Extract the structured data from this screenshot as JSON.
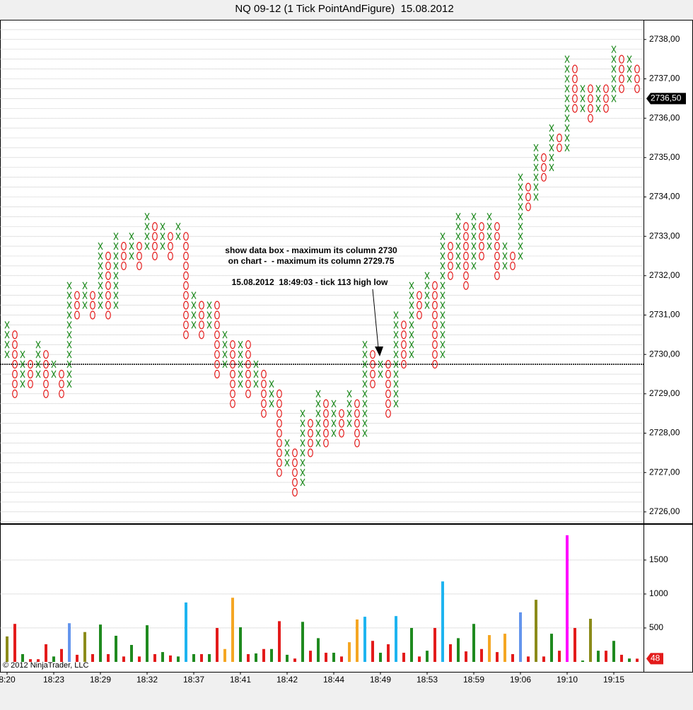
{
  "chart_data": [
    {
      "type": "pointandfigure",
      "title": "NQ 09-12 (1 Tick PointAndFigure)  15.08.2012",
      "box_size": 0.25,
      "x_color": "#1f8a1f",
      "o_color": "#e31b1b",
      "ylim": [
        2725.71,
        2738.5
      ],
      "yticks": [
        {
          "value": 2726,
          "label": "2726,00"
        },
        {
          "value": 2727,
          "label": "2727,00"
        },
        {
          "value": 2728,
          "label": "2728,00"
        },
        {
          "value": 2729,
          "label": "2729,00"
        },
        {
          "value": 2730,
          "label": "2730,00"
        },
        {
          "value": 2731,
          "label": "2731,00"
        },
        {
          "value": 2732,
          "label": "2732,00"
        },
        {
          "value": 2733,
          "label": "2733,00"
        },
        {
          "value": 2734,
          "label": "2734,00"
        },
        {
          "value": 2735,
          "label": "2735,00"
        },
        {
          "value": 2736,
          "label": "2736,00"
        },
        {
          "value": 2737,
          "label": "2737,00"
        },
        {
          "value": 2738,
          "label": "2738,00"
        }
      ],
      "reference_line": 2729.75,
      "last_price": {
        "value": 2736.5,
        "label": "2736,50"
      },
      "annotations": [
        "show data box - maximum its column 2730",
        "on chart -  - maximum its column 2729.75",
        "15.08.2012  18:49:03 - tick 113 high low"
      ],
      "copyright": "© 2012 NinjaTrader, LLC",
      "columns": [
        {
          "kind": "X",
          "low": 2730.0,
          "high": 2730.75
        },
        {
          "kind": "O",
          "low": 2729.0,
          "high": 2730.5
        },
        {
          "kind": "X",
          "low": 2729.25,
          "high": 2730.0
        },
        {
          "kind": "O",
          "low": 2729.25,
          "high": 2729.75
        },
        {
          "kind": "X",
          "low": 2729.5,
          "high": 2730.25
        },
        {
          "kind": "O",
          "low": 2729.0,
          "high": 2730.0
        },
        {
          "kind": "X",
          "low": 2729.5,
          "high": 2729.75
        },
        {
          "kind": "O",
          "low": 2729.0,
          "high": 2729.5
        },
        {
          "kind": "X",
          "low": 2729.25,
          "high": 2731.75
        },
        {
          "kind": "O",
          "low": 2731.0,
          "high": 2731.5
        },
        {
          "kind": "X",
          "low": 2731.25,
          "high": 2731.75
        },
        {
          "kind": "O",
          "low": 2731.0,
          "high": 2731.5
        },
        {
          "kind": "X",
          "low": 2731.25,
          "high": 2732.75
        },
        {
          "kind": "O",
          "low": 2731.0,
          "high": 2732.5
        },
        {
          "kind": "X",
          "low": 2731.25,
          "high": 2733.0
        },
        {
          "kind": "O",
          "low": 2732.25,
          "high": 2732.75
        },
        {
          "kind": "X",
          "low": 2732.5,
          "high": 2733.0
        },
        {
          "kind": "O",
          "low": 2732.25,
          "high": 2732.75
        },
        {
          "kind": "X",
          "low": 2732.75,
          "high": 2733.5
        },
        {
          "kind": "O",
          "low": 2732.5,
          "high": 2733.25
        },
        {
          "kind": "X",
          "low": 2732.75,
          "high": 2733.25
        },
        {
          "kind": "O",
          "low": 2732.5,
          "high": 2733.0
        },
        {
          "kind": "X",
          "low": 2733.0,
          "high": 2733.25
        },
        {
          "kind": "O",
          "low": 2730.5,
          "high": 2733.0
        },
        {
          "kind": "X",
          "low": 2730.75,
          "high": 2731.5
        },
        {
          "kind": "O",
          "low": 2730.5,
          "high": 2731.25
        },
        {
          "kind": "X",
          "low": 2730.75,
          "high": 2731.25
        },
        {
          "kind": "O",
          "low": 2729.5,
          "high": 2731.25
        },
        {
          "kind": "X",
          "low": 2729.75,
          "high": 2730.5
        },
        {
          "kind": "O",
          "low": 2728.75,
          "high": 2730.25
        },
        {
          "kind": "X",
          "low": 2729.25,
          "high": 2730.25
        },
        {
          "kind": "O",
          "low": 2729.0,
          "high": 2730.25
        },
        {
          "kind": "X",
          "low": 2729.25,
          "high": 2729.75
        },
        {
          "kind": "O",
          "low": 2728.5,
          "high": 2729.5
        },
        {
          "kind": "X",
          "low": 2728.75,
          "high": 2729.25
        },
        {
          "kind": "O",
          "low": 2727.0,
          "high": 2729.0
        },
        {
          "kind": "X",
          "low": 2727.25,
          "high": 2727.75
        },
        {
          "kind": "O",
          "low": 2726.5,
          "high": 2727.5
        },
        {
          "kind": "X",
          "low": 2726.75,
          "high": 2728.5
        },
        {
          "kind": "O",
          "low": 2727.5,
          "high": 2728.25
        },
        {
          "kind": "X",
          "low": 2727.75,
          "high": 2729.0
        },
        {
          "kind": "O",
          "low": 2727.75,
          "high": 2728.75
        },
        {
          "kind": "X",
          "low": 2728.0,
          "high": 2728.75
        },
        {
          "kind": "O",
          "low": 2728.0,
          "high": 2728.5
        },
        {
          "kind": "X",
          "low": 2728.25,
          "high": 2729.0
        },
        {
          "kind": "O",
          "low": 2727.75,
          "high": 2728.75
        },
        {
          "kind": "X",
          "low": 2728.0,
          "high": 2730.25
        },
        {
          "kind": "O",
          "low": 2729.25,
          "high": 2730.0
        },
        {
          "kind": "X",
          "low": 2729.5,
          "high": 2729.75
        },
        {
          "kind": "O",
          "low": 2728.5,
          "high": 2729.75
        },
        {
          "kind": "X",
          "low": 2728.75,
          "high": 2731.0
        },
        {
          "kind": "O",
          "low": 2729.75,
          "high": 2730.75
        },
        {
          "kind": "X",
          "low": 2730.0,
          "high": 2731.75
        },
        {
          "kind": "O",
          "low": 2731.0,
          "high": 2731.5
        },
        {
          "kind": "X",
          "low": 2731.25,
          "high": 2732.0
        },
        {
          "kind": "O",
          "low": 2729.75,
          "high": 2731.75
        },
        {
          "kind": "X",
          "low": 2730.0,
          "high": 2733.0
        },
        {
          "kind": "O",
          "low": 2732.0,
          "high": 2732.75
        },
        {
          "kind": "X",
          "low": 2732.25,
          "high": 2733.5
        },
        {
          "kind": "O",
          "low": 2731.75,
          "high": 2733.25
        },
        {
          "kind": "X",
          "low": 2732.25,
          "high": 2733.5
        },
        {
          "kind": "O",
          "low": 2732.5,
          "high": 2733.25
        },
        {
          "kind": "X",
          "low": 2732.75,
          "high": 2733.5
        },
        {
          "kind": "O",
          "low": 2732.0,
          "high": 2733.25
        },
        {
          "kind": "X",
          "low": 2732.25,
          "high": 2732.75
        },
        {
          "kind": "O",
          "low": 2732.25,
          "high": 2732.5
        },
        {
          "kind": "X",
          "low": 2732.5,
          "high": 2734.5
        },
        {
          "kind": "O",
          "low": 2733.75,
          "high": 2734.25
        },
        {
          "kind": "X",
          "low": 2734.0,
          "high": 2735.25
        },
        {
          "kind": "O",
          "low": 2734.5,
          "high": 2735.0
        },
        {
          "kind": "X",
          "low": 2734.75,
          "high": 2735.75
        },
        {
          "kind": "O",
          "low": 2735.25,
          "high": 2735.5
        },
        {
          "kind": "X",
          "low": 2735.25,
          "high": 2737.5
        },
        {
          "kind": "O",
          "low": 2736.25,
          "high": 2737.25
        },
        {
          "kind": "X",
          "low": 2736.25,
          "high": 2736.75
        },
        {
          "kind": "O",
          "low": 2736.0,
          "high": 2736.75
        },
        {
          "kind": "X",
          "low": 2736.25,
          "high": 2736.75
        },
        {
          "kind": "O",
          "low": 2736.25,
          "high": 2736.75
        },
        {
          "kind": "X",
          "low": 2736.5,
          "high": 2737.75
        },
        {
          "kind": "O",
          "low": 2736.75,
          "high": 2737.5
        },
        {
          "kind": "X",
          "low": 2737.0,
          "high": 2737.5
        },
        {
          "kind": "O",
          "low": 2736.75,
          "high": 2737.25
        }
      ]
    },
    {
      "type": "bar",
      "categories": [
        "8:20",
        null,
        null,
        null,
        null,
        null,
        "18:23",
        null,
        null,
        null,
        null,
        null,
        "18:29",
        null,
        null,
        null,
        null,
        null,
        "18:32",
        null,
        null,
        null,
        null,
        null,
        "18:37",
        null,
        null,
        null,
        null,
        null,
        "18:41",
        null,
        null,
        null,
        null,
        null,
        "18:42",
        null,
        null,
        null,
        null,
        null,
        "18:44",
        null,
        null,
        null,
        null,
        null,
        "18:49",
        null,
        null,
        null,
        null,
        null,
        "18:53",
        null,
        null,
        null,
        null,
        null,
        "18:59",
        null,
        null,
        null,
        null,
        null,
        "19:06",
        null,
        null,
        null,
        null,
        null,
        "19:10",
        null,
        null,
        null,
        null,
        null,
        "19:15",
        null,
        null,
        null
      ],
      "values": [
        375,
        560,
        115,
        40,
        40,
        260,
        80,
        190,
        570,
        105,
        440,
        115,
        550,
        115,
        385,
        80,
        250,
        80,
        540,
        115,
        145,
        95,
        80,
        875,
        115,
        115,
        115,
        500,
        190,
        945,
        510,
        115,
        125,
        190,
        190,
        600,
        105,
        50,
        590,
        165,
        350,
        135,
        135,
        80,
        290,
        625,
        665,
        310,
        135,
        260,
        675,
        135,
        500,
        80,
        165,
        500,
        1185,
        260,
        350,
        155,
        560,
        190,
        395,
        145,
        415,
        115,
        730,
        80,
        915,
        80,
        415,
        165,
        1865,
        500,
        20,
        635,
        165,
        165,
        310,
        105,
        50,
        48
      ],
      "colors": [
        "#8b8b1a",
        "#e31b1b",
        "#1f8a1f",
        "#e31b1b",
        "#e31b1b",
        "#e31b1b",
        "#1f8a1f",
        "#e31b1b",
        "#6495ed",
        "#e31b1b",
        "#8b8b1a",
        "#e31b1b",
        "#1f8a1f",
        "#e31b1b",
        "#1f8a1f",
        "#e31b1b",
        "#1f8a1f",
        "#e31b1b",
        "#1f8a1f",
        "#e31b1b",
        "#1f8a1f",
        "#e31b1b",
        "#1f8a1f",
        "#1eb4f0",
        "#1f8a1f",
        "#e31b1b",
        "#1f8a1f",
        "#e31b1b",
        "#f5a623",
        "#f5a623",
        "#1f8a1f",
        "#e31b1b",
        "#1f8a1f",
        "#e31b1b",
        "#1f8a1f",
        "#e31b1b",
        "#1f8a1f",
        "#e31b1b",
        "#1f8a1f",
        "#e31b1b",
        "#1f8a1f",
        "#e31b1b",
        "#1f8a1f",
        "#e31b1b",
        "#f5a623",
        "#f5a623",
        "#1eb4f0",
        "#e31b1b",
        "#1f8a1f",
        "#e31b1b",
        "#1eb4f0",
        "#e31b1b",
        "#1f8a1f",
        "#e31b1b",
        "#1f8a1f",
        "#e31b1b",
        "#1eb4f0",
        "#e31b1b",
        "#1f8a1f",
        "#e31b1b",
        "#1f8a1f",
        "#e31b1b",
        "#f5a623",
        "#e31b1b",
        "#f5a623",
        "#e31b1b",
        "#6495ed",
        "#e31b1b",
        "#8b8b1a",
        "#e31b1b",
        "#1f8a1f",
        "#e31b1b",
        "#ff00ff",
        "#e31b1b",
        "#1f8a1f",
        "#8b8b1a",
        "#1f8a1f",
        "#e31b1b",
        "#1f8a1f",
        "#e31b1b",
        "#1f8a1f",
        "#e31b1b"
      ],
      "ylim": [
        0,
        2020
      ],
      "yticks": [
        500,
        1000,
        1500
      ],
      "grid": true
    }
  ]
}
